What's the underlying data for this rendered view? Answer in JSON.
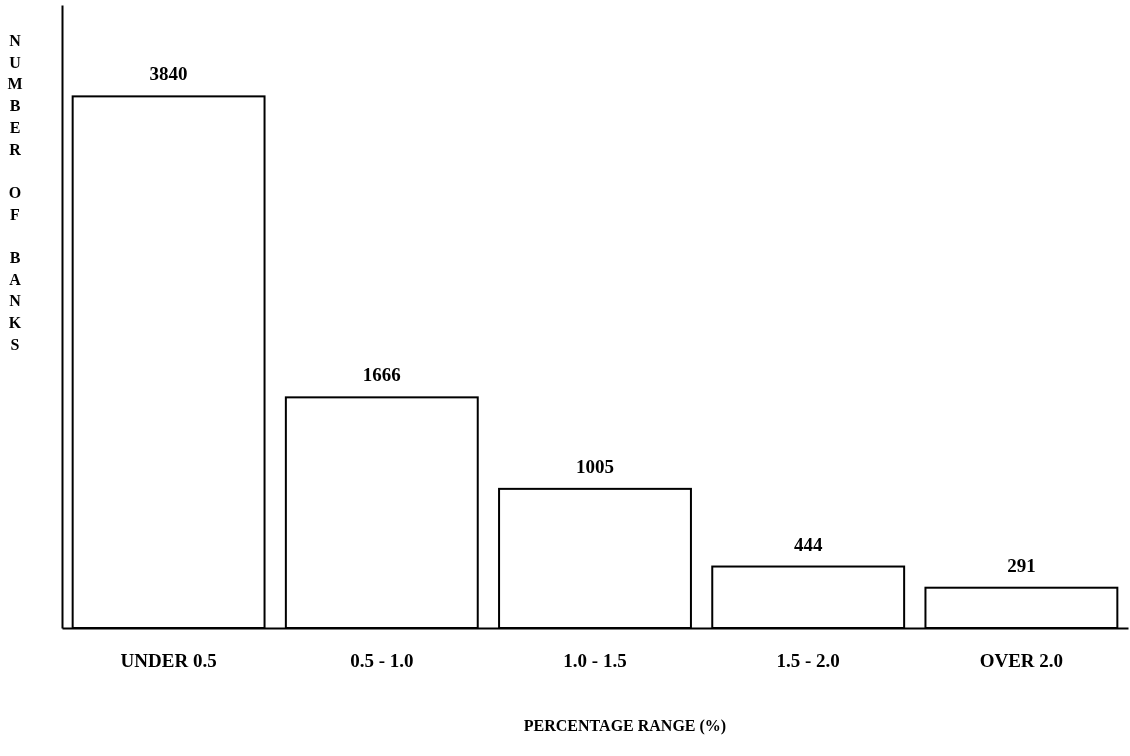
{
  "chart_data": {
    "type": "bar",
    "xlabel": "PERCENTAGE RANGE (%)",
    "ylabel": "NUMBER OF BANKS",
    "categories": [
      "UNDER 0.5",
      "0.5 - 1.0",
      "1.0 - 1.5",
      "1.5 - 2.0",
      "OVER 2.0"
    ],
    "values": [
      3840,
      1666,
      1005,
      444,
      291
    ],
    "color": "#ffffff",
    "ylim": [
      0,
      4500
    ],
    "data_labels": true,
    "grid": false
  }
}
